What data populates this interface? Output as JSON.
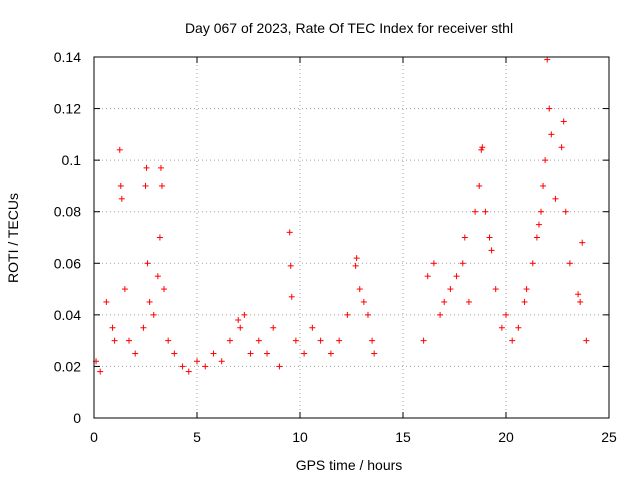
{
  "chart_data": {
    "type": "scatter",
    "title": "Day 067 of 2023, Rate Of TEC Index for receiver sthl",
    "xlabel": "GPS time / hours",
    "ylabel": "ROTI / TECUs",
    "xlim": [
      0,
      25
    ],
    "ylim": [
      0,
      0.14
    ],
    "xticks": [
      0,
      5,
      10,
      15,
      20,
      25
    ],
    "yticks": [
      0,
      0.02,
      0.04,
      0.06,
      0.08,
      0.1,
      0.12,
      0.14
    ],
    "xtick_labels": [
      "0",
      "5",
      "10",
      "15",
      "20",
      "25"
    ],
    "ytick_labels": [
      "0",
      "0.02",
      "0.04",
      "0.06",
      "0.08",
      "0.1",
      "0.12",
      "0.14"
    ],
    "grid": true,
    "marker": "+",
    "color": "#ff0000",
    "series": [
      {
        "name": "ROTI",
        "x": [
          0.1,
          0.3,
          0.6,
          0.9,
          1.0,
          1.25,
          1.3,
          1.35,
          1.5,
          1.7,
          2.0,
          2.4,
          2.5,
          2.55,
          2.6,
          2.7,
          2.9,
          3.1,
          3.2,
          3.25,
          3.3,
          3.4,
          3.6,
          3.9,
          4.3,
          4.6,
          5.0,
          5.4,
          5.8,
          6.2,
          6.6,
          7.0,
          7.1,
          7.3,
          7.6,
          8.0,
          8.4,
          8.7,
          9.0,
          9.5,
          9.55,
          9.6,
          9.8,
          10.2,
          10.6,
          11.0,
          11.5,
          11.9,
          12.3,
          12.7,
          12.75,
          12.9,
          13.1,
          13.3,
          13.5,
          13.6,
          16.0,
          16.2,
          16.5,
          16.8,
          17.0,
          17.3,
          17.6,
          17.9,
          18.0,
          18.2,
          18.5,
          18.7,
          18.8,
          18.85,
          19.0,
          19.2,
          19.3,
          19.5,
          19.8,
          20.0,
          20.3,
          20.6,
          20.9,
          21.0,
          21.3,
          21.5,
          21.6,
          21.7,
          21.8,
          21.9,
          22.0,
          22.1,
          22.2,
          22.4,
          22.7,
          22.8,
          22.9,
          23.1,
          23.5,
          23.6,
          23.7,
          23.9
        ],
        "y": [
          0.022,
          0.018,
          0.045,
          0.035,
          0.03,
          0.104,
          0.09,
          0.085,
          0.05,
          0.03,
          0.025,
          0.035,
          0.09,
          0.097,
          0.06,
          0.045,
          0.04,
          0.055,
          0.07,
          0.097,
          0.09,
          0.05,
          0.03,
          0.025,
          0.02,
          0.018,
          0.022,
          0.02,
          0.025,
          0.022,
          0.03,
          0.038,
          0.035,
          0.04,
          0.025,
          0.03,
          0.025,
          0.035,
          0.02,
          0.072,
          0.059,
          0.047,
          0.03,
          0.025,
          0.035,
          0.03,
          0.025,
          0.03,
          0.04,
          0.059,
          0.062,
          0.05,
          0.045,
          0.04,
          0.03,
          0.025,
          0.03,
          0.055,
          0.06,
          0.04,
          0.045,
          0.05,
          0.055,
          0.06,
          0.07,
          0.045,
          0.08,
          0.09,
          0.104,
          0.105,
          0.08,
          0.07,
          0.065,
          0.05,
          0.035,
          0.04,
          0.03,
          0.035,
          0.045,
          0.05,
          0.06,
          0.07,
          0.075,
          0.08,
          0.09,
          0.1,
          0.139,
          0.12,
          0.11,
          0.085,
          0.105,
          0.115,
          0.08,
          0.06,
          0.048,
          0.045,
          0.068,
          0.03
        ]
      }
    ]
  }
}
